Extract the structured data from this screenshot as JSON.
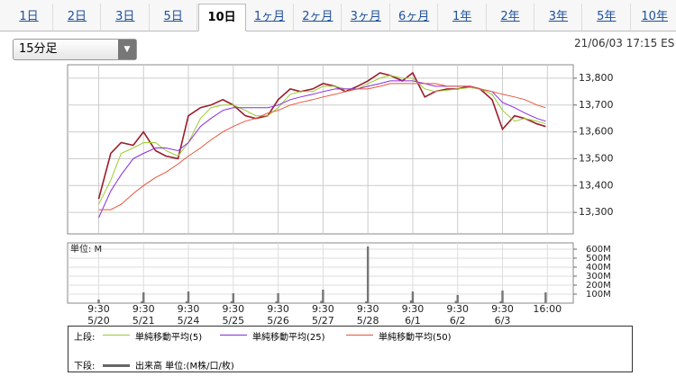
{
  "tabs": [
    "1日",
    "2日",
    "3日",
    "5日",
    "10日",
    "1ヶ月",
    "2ヶ月",
    "3ヶ月",
    "6ヶ月",
    "1年",
    "2年",
    "3年",
    "5年",
    "10年"
  ],
  "selected_tab": 4,
  "interval_select": "15分足",
  "timestamp": "21/06/03 17:15 ES",
  "chart_data": {
    "type": "line",
    "grid": true,
    "xlim": [
      -18,
      275
    ],
    "ylim": [
      13220,
      13850
    ],
    "yticks": [
      {
        "value": 13300,
        "label": "13,300"
      },
      {
        "value": 13400,
        "label": "13,400"
      },
      {
        "value": 13500,
        "label": "13,500"
      },
      {
        "value": 13600,
        "label": "13,600"
      },
      {
        "value": 13700,
        "label": "13,700"
      },
      {
        "value": 13800,
        "label": "13,800"
      }
    ],
    "xticks": [
      {
        "value": 0,
        "label": "9:30\n5/20"
      },
      {
        "value": 26,
        "label": "9:30\n5/21"
      },
      {
        "value": 52,
        "label": "9:30\n5/24"
      },
      {
        "value": 78,
        "label": "9:30\n5/25"
      },
      {
        "value": 104,
        "label": "9:30\n5/26"
      },
      {
        "value": 130,
        "label": "9:30\n5/27"
      },
      {
        "value": 156,
        "label": "9:30\n5/28"
      },
      {
        "value": 182,
        "label": "9:30\n6/1"
      },
      {
        "value": 208,
        "label": "9:30\n6/2"
      },
      {
        "value": 234,
        "label": "9:30\n6/3"
      },
      {
        "value": 260,
        "label": "16:00"
      }
    ],
    "x": [
      0,
      7,
      13,
      20,
      26,
      33,
      39,
      46,
      52,
      59,
      65,
      72,
      78,
      85,
      91,
      98,
      104,
      111,
      117,
      124,
      130,
      137,
      143,
      150,
      156,
      163,
      169,
      176,
      182,
      189,
      195,
      202,
      208,
      215,
      221,
      228,
      234,
      241,
      247,
      254,
      259
    ],
    "price": {
      "color": "#9b1c2c",
      "values": [
        13350,
        13520,
        13560,
        13550,
        13600,
        13530,
        13510,
        13500,
        13660,
        13690,
        13700,
        13720,
        13700,
        13660,
        13650,
        13660,
        13720,
        13760,
        13750,
        13760,
        13780,
        13770,
        13750,
        13770,
        13790,
        13820,
        13810,
        13790,
        13820,
        13730,
        13750,
        13760,
        13760,
        13770,
        13760,
        13720,
        13610,
        13660,
        13650,
        13630,
        13620
      ]
    },
    "series": [
      {
        "name": "単純移動平均(5)",
        "color": "#9acd32",
        "values": [
          13330,
          13420,
          13520,
          13540,
          13560,
          13560,
          13530,
          13510,
          13560,
          13650,
          13690,
          13700,
          13700,
          13680,
          13660,
          13660,
          13690,
          13740,
          13750,
          13750,
          13770,
          13770,
          13760,
          13760,
          13780,
          13800,
          13810,
          13800,
          13800,
          13760,
          13750,
          13755,
          13760,
          13765,
          13760,
          13740,
          13680,
          13640,
          13650,
          13640,
          13630
        ]
      },
      {
        "name": "単純移動平均(25)",
        "color": "#8a2be2",
        "values": [
          13280,
          13380,
          13440,
          13500,
          13520,
          13540,
          13540,
          13530,
          13560,
          13620,
          13650,
          13680,
          13690,
          13690,
          13690,
          13690,
          13700,
          13720,
          13730,
          13740,
          13750,
          13760,
          13760,
          13760,
          13770,
          13780,
          13790,
          13790,
          13790,
          13780,
          13770,
          13770,
          13770,
          13770,
          13760,
          13750,
          13710,
          13690,
          13670,
          13650,
          13640
        ]
      },
      {
        "name": "単純移動平均(50)",
        "color": "#e8553b",
        "values": [
          13310,
          13310,
          13330,
          13370,
          13400,
          13430,
          13450,
          13480,
          13510,
          13540,
          13570,
          13600,
          13620,
          13640,
          13650,
          13670,
          13680,
          13700,
          13710,
          13720,
          13730,
          13740,
          13750,
          13760,
          13760,
          13770,
          13780,
          13780,
          13780,
          13780,
          13780,
          13770,
          13770,
          13770,
          13760,
          13750,
          13740,
          13730,
          13720,
          13700,
          13690
        ]
      }
    ],
    "volume": {
      "type": "bar",
      "unit_label": "単位: M",
      "color": "#777777",
      "ylim": [
        0,
        670
      ],
      "yticks": [
        {
          "value": 100,
          "label": "100M"
        },
        {
          "value": 200,
          "label": "200M"
        },
        {
          "value": 300,
          "label": "300M"
        },
        {
          "value": 400,
          "label": "400M"
        },
        {
          "value": 500,
          "label": "500M"
        },
        {
          "value": 600,
          "label": "600M"
        }
      ],
      "x": [
        0,
        25,
        26,
        51,
        52,
        77,
        78,
        103,
        104,
        129,
        130,
        155,
        156,
        181,
        182,
        207,
        208,
        233,
        234,
        259
      ],
      "values": [
        40,
        20,
        120,
        20,
        130,
        20,
        110,
        20,
        110,
        25,
        150,
        20,
        630,
        30,
        130,
        25,
        90,
        20,
        140,
        120
      ]
    },
    "legend": {
      "upper_label": "上段:",
      "lower_label": "下段:",
      "volume_label": "出来高 単位:(M株/口/枚)"
    }
  }
}
